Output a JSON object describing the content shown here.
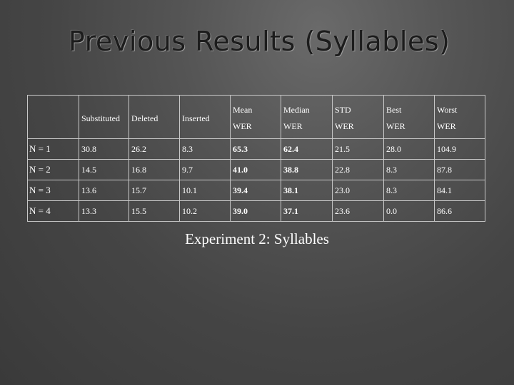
{
  "slide": {
    "title": "Previous Results (Syllables)",
    "caption": "Experiment 2: Syllables"
  },
  "table": {
    "headers": [
      "",
      "Substituted",
      "Deleted",
      "Inserted",
      "Mean",
      "Median",
      "STD",
      "Best",
      "Worst"
    ],
    "subheaders": [
      "",
      "",
      "",
      "",
      "WER",
      "WER",
      "WER",
      "WER",
      "WER"
    ],
    "rows": [
      [
        "N = 1",
        "30.8",
        "26.2",
        "8.3",
        "65.3",
        "62.4",
        "21.5",
        "28.0",
        "104.9"
      ],
      [
        "N = 2",
        "14.5",
        "16.8",
        "9.7",
        "41.0",
        "38.8",
        "22.8",
        "8.3",
        "87.8"
      ],
      [
        "N = 3",
        "13.6",
        "15.7",
        "10.1",
        "39.4",
        "38.1",
        "23.0",
        "8.3",
        "84.1"
      ],
      [
        "N = 4",
        "13.3",
        "15.5",
        "10.2",
        "39.0",
        "37.1",
        "23.6",
        "0.0",
        "86.6"
      ]
    ]
  }
}
